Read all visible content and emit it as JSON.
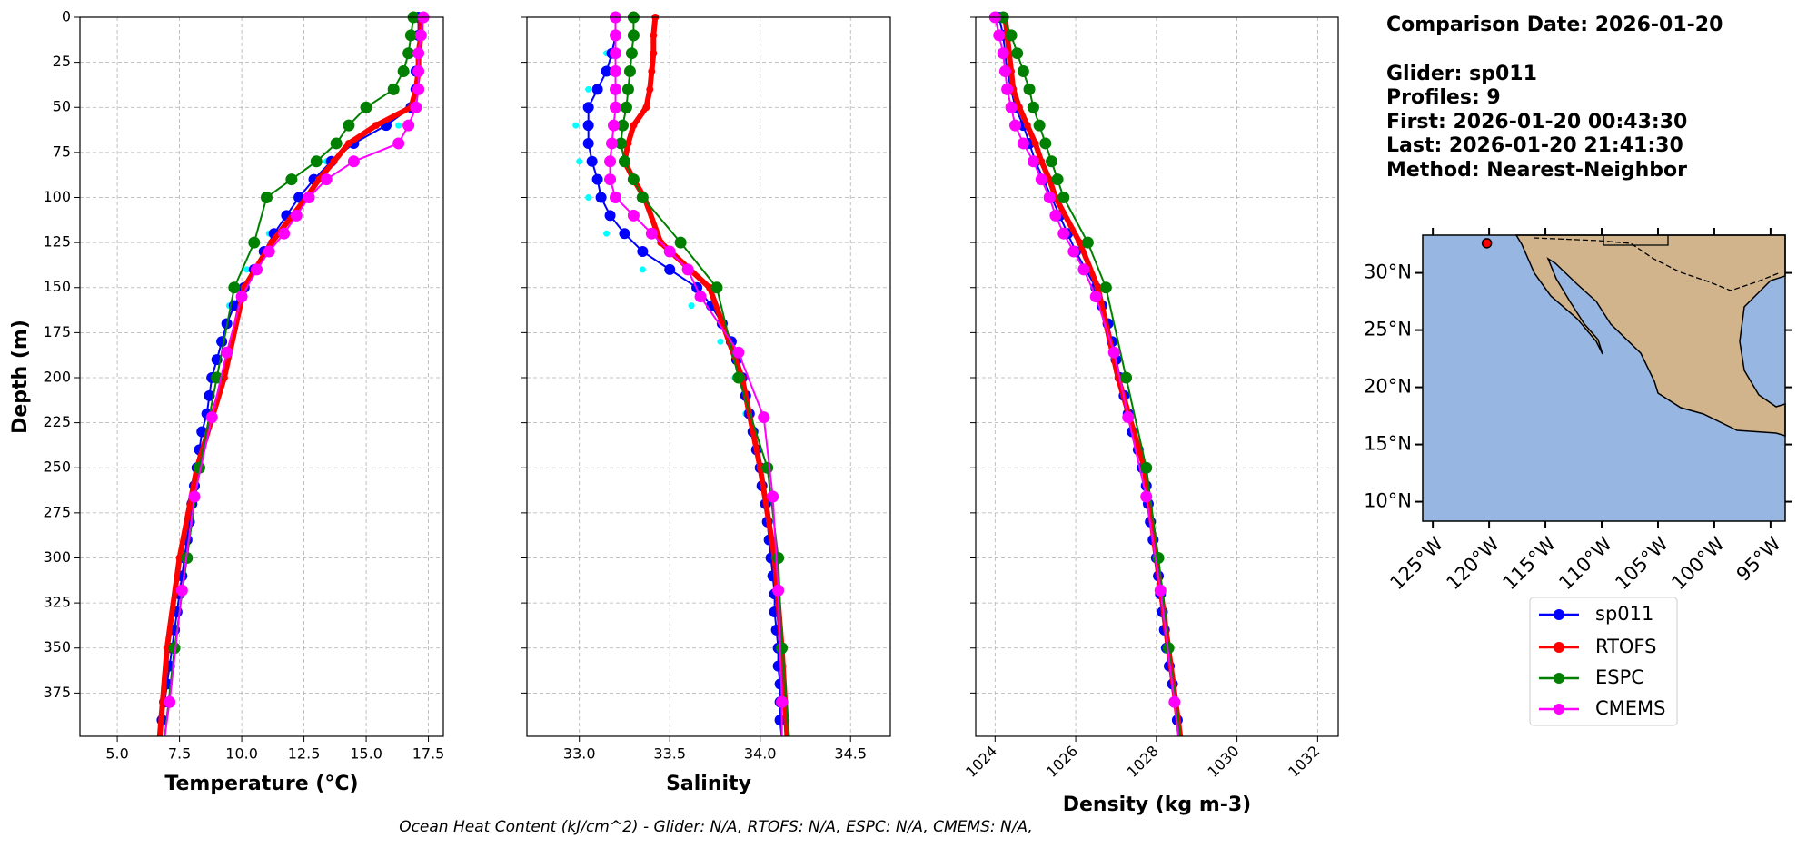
{
  "chart_data": [
    {
      "type": "line",
      "xlabel": "Temperature (°C)",
      "ylabel": "Depth (m)",
      "grid": true,
      "y_inverted": true,
      "xlim": [
        3.5,
        18.1
      ],
      "ylim": [
        0,
        399
      ],
      "xticks": [
        {
          "value": 5,
          "label": "5.0"
        },
        7.5,
        {
          "value": 10,
          "label": "10.0"
        },
        12.5,
        {
          "value": 15,
          "label": "15.0"
        },
        17.5
      ],
      "yticks": [
        0,
        25,
        50,
        75,
        100,
        125,
        150,
        175,
        200,
        225,
        250,
        275,
        300,
        325,
        350,
        375
      ],
      "series": [
        {
          "type": "scatter",
          "color": "#00ffff",
          "depth": [
            0,
            20,
            40,
            60,
            80,
            100,
            120,
            140,
            160,
            180,
            200,
            220,
            240,
            260,
            280,
            300,
            320,
            340,
            360,
            380,
            400
          ],
          "values": [
            17.0,
            16.9,
            16.9,
            16.3,
            13.4,
            12.2,
            11.1,
            10.2,
            9.5,
            9.1,
            8.7,
            8.5,
            8.2,
            8.0,
            7.8,
            7.6,
            7.4,
            7.2,
            7.0,
            6.9,
            6.7
          ]
        },
        {
          "name": "sp011",
          "color": "#0000ff",
          "depth": [
            0,
            10,
            20,
            30,
            40,
            50,
            60,
            70,
            80,
            90,
            100,
            110,
            120,
            130,
            140,
            150,
            160,
            170,
            180,
            190,
            200,
            210,
            220,
            230,
            240,
            250,
            260,
            270,
            280,
            290,
            300,
            310,
            320,
            330,
            340,
            350,
            360,
            370,
            380,
            390,
            400
          ],
          "values": [
            17.1,
            17.1,
            17.1,
            17.0,
            17.0,
            16.8,
            15.8,
            14.5,
            13.6,
            12.9,
            12.3,
            11.8,
            11.3,
            10.9,
            10.5,
            10.1,
            9.7,
            9.4,
            9.2,
            9.0,
            8.8,
            8.7,
            8.6,
            8.4,
            8.3,
            8.2,
            8.1,
            8.0,
            7.9,
            7.8,
            7.7,
            7.6,
            7.5,
            7.4,
            7.3,
            7.2,
            7.1,
            7.0,
            6.9,
            6.8,
            6.7
          ]
        },
        {
          "name": "RTOFS",
          "color": "#ff0000",
          "depth": [
            0,
            10,
            20,
            30,
            40,
            50,
            60,
            70,
            80,
            90,
            100,
            125,
            150,
            200,
            250,
            300,
            350,
            400
          ],
          "values": [
            17.2,
            17.2,
            17.1,
            17.1,
            17.0,
            16.8,
            15.4,
            14.3,
            13.7,
            13.1,
            12.6,
            11.2,
            10.1,
            9.3,
            8.2,
            7.5,
            7.0,
            6.7
          ]
        },
        {
          "name": "ESPC",
          "color": "#008000",
          "depth": [
            0,
            10,
            20,
            30,
            40,
            50,
            60,
            70,
            80,
            90,
            100,
            125,
            150,
            200,
            250,
            300,
            350,
            400
          ],
          "values": [
            16.9,
            16.8,
            16.7,
            16.5,
            16.1,
            15.0,
            14.3,
            13.8,
            13.0,
            12.0,
            11.0,
            10.5,
            9.7,
            9.0,
            8.3,
            7.8,
            7.3,
            6.9
          ]
        },
        {
          "name": "CMEMS",
          "color": "#ff00ff",
          "depth": [
            0,
            10,
            20,
            30,
            40,
            50,
            60,
            70,
            80,
            90,
            100,
            110,
            120,
            130,
            140,
            155,
            186,
            222,
            266,
            318,
            380,
            400
          ],
          "values": [
            17.3,
            17.2,
            17.1,
            17.1,
            17.1,
            17.0,
            16.7,
            16.3,
            14.5,
            13.4,
            12.7,
            12.2,
            11.7,
            11.1,
            10.6,
            10.0,
            9.4,
            8.8,
            8.1,
            7.6,
            7.1,
            6.9
          ]
        }
      ]
    },
    {
      "type": "line",
      "xlabel": "Salinity",
      "grid": true,
      "y_inverted": true,
      "ytick_labels": false,
      "xlim": [
        32.71,
        34.72
      ],
      "ylim": [
        0,
        399
      ],
      "xticks": [
        {
          "value": 33,
          "label": "33.0"
        },
        33.5,
        {
          "value": 34,
          "label": "34.0"
        },
        34.5
      ],
      "yticks": [
        0,
        25,
        50,
        75,
        100,
        125,
        150,
        175,
        200,
        225,
        250,
        275,
        300,
        325,
        350,
        375
      ],
      "series": [
        {
          "type": "scatter",
          "color": "#00ffff",
          "depth": [
            0,
            20,
            40,
            60,
            80,
            100,
            120,
            140,
            160,
            180,
            200,
            220,
            240,
            260,
            280,
            300,
            320,
            340,
            360,
            380,
            400
          ],
          "values": [
            33.2,
            33.15,
            33.05,
            32.98,
            33.0,
            33.05,
            33.15,
            33.35,
            33.62,
            33.78,
            33.86,
            33.92,
            33.97,
            34.0,
            34.04,
            34.07,
            34.09,
            34.11,
            34.13,
            34.14,
            34.14
          ]
        },
        {
          "name": "sp011",
          "color": "#0000ff",
          "depth": [
            0,
            10,
            20,
            30,
            40,
            50,
            60,
            70,
            80,
            90,
            100,
            110,
            120,
            130,
            140,
            150,
            160,
            170,
            180,
            190,
            200,
            210,
            220,
            230,
            240,
            250,
            260,
            270,
            280,
            290,
            300,
            310,
            320,
            330,
            340,
            350,
            360,
            370,
            380,
            390,
            400
          ],
          "values": [
            33.2,
            33.2,
            33.18,
            33.15,
            33.1,
            33.05,
            33.05,
            33.05,
            33.07,
            33.1,
            33.12,
            33.17,
            33.25,
            33.35,
            33.5,
            33.65,
            33.73,
            33.79,
            33.84,
            33.87,
            33.9,
            33.92,
            33.94,
            33.96,
            33.98,
            34.0,
            34.01,
            34.03,
            34.04,
            34.05,
            34.06,
            34.07,
            34.08,
            34.08,
            34.09,
            34.1,
            34.1,
            34.11,
            34.11,
            34.11,
            34.12
          ]
        },
        {
          "name": "RTOFS",
          "color": "#ff0000",
          "depth": [
            0,
            10,
            20,
            30,
            40,
            50,
            60,
            70,
            80,
            90,
            100,
            125,
            150,
            200,
            250,
            300,
            350,
            400
          ],
          "values": [
            33.42,
            33.41,
            33.41,
            33.4,
            33.39,
            33.37,
            33.3,
            33.27,
            33.25,
            33.3,
            33.36,
            33.45,
            33.72,
            33.9,
            34.0,
            34.08,
            34.12,
            34.15
          ]
        },
        {
          "name": "ESPC",
          "color": "#008000",
          "depth": [
            0,
            10,
            20,
            30,
            40,
            50,
            60,
            70,
            80,
            90,
            100,
            125,
            150,
            200,
            250,
            300,
            350,
            400
          ],
          "values": [
            33.3,
            33.3,
            33.29,
            33.28,
            33.27,
            33.26,
            33.24,
            33.23,
            33.25,
            33.3,
            33.35,
            33.56,
            33.76,
            33.88,
            34.04,
            34.1,
            34.12,
            34.16
          ]
        },
        {
          "name": "CMEMS",
          "color": "#ff00ff",
          "depth": [
            0,
            10,
            20,
            30,
            40,
            50,
            60,
            70,
            80,
            90,
            100,
            110,
            120,
            130,
            140,
            155,
            186,
            222,
            266,
            318,
            380,
            400
          ],
          "values": [
            33.2,
            33.2,
            33.2,
            33.2,
            33.2,
            33.2,
            33.19,
            33.18,
            33.17,
            33.17,
            33.2,
            33.3,
            33.4,
            33.5,
            33.6,
            33.67,
            33.88,
            34.02,
            34.07,
            34.1,
            34.12,
            34.12
          ]
        }
      ]
    },
    {
      "type": "line",
      "xlabel": "Density (kg m-3)",
      "grid": true,
      "y_inverted": true,
      "ytick_labels": false,
      "xtick_rotation": 45,
      "xlim": [
        1023.52,
        1032.51
      ],
      "ylim": [
        0,
        399
      ],
      "xticks": [
        1024,
        1026,
        1028,
        1030,
        1032
      ],
      "yticks": [
        0,
        25,
        50,
        75,
        100,
        125,
        150,
        175,
        200,
        225,
        250,
        275,
        300,
        325,
        350,
        375
      ],
      "series": [
        {
          "type": "scatter",
          "color": "#00ffff",
          "depth": [
            0,
            20,
            40,
            60,
            80,
            100,
            120,
            140,
            160,
            180,
            200,
            220,
            240,
            260,
            280,
            300,
            320,
            340,
            360,
            380,
            400
          ],
          "values": [
            1024.1,
            1024.25,
            1024.4,
            1024.75,
            1025.05,
            1025.45,
            1025.85,
            1026.2,
            1026.6,
            1026.85,
            1027.05,
            1027.3,
            1027.55,
            1027.75,
            1027.85,
            1028.0,
            1028.1,
            1028.2,
            1028.32,
            1028.45,
            1028.6
          ]
        },
        {
          "name": "sp011",
          "color": "#0000ff",
          "depth": [
            0,
            10,
            20,
            30,
            40,
            50,
            60,
            70,
            80,
            90,
            100,
            110,
            120,
            130,
            140,
            150,
            160,
            170,
            180,
            190,
            200,
            210,
            220,
            230,
            240,
            250,
            260,
            270,
            280,
            290,
            300,
            310,
            320,
            330,
            340,
            350,
            360,
            370,
            380,
            390,
            400
          ],
          "values": [
            1024.1,
            1024.2,
            1024.25,
            1024.3,
            1024.4,
            1024.5,
            1024.7,
            1024.85,
            1025.0,
            1025.2,
            1025.4,
            1025.6,
            1025.8,
            1026.0,
            1026.25,
            1026.5,
            1026.65,
            1026.8,
            1026.9,
            1027.0,
            1027.1,
            1027.2,
            1027.3,
            1027.4,
            1027.55,
            1027.65,
            1027.75,
            1027.8,
            1027.85,
            1027.92,
            1028.0,
            1028.05,
            1028.1,
            1028.15,
            1028.2,
            1028.25,
            1028.32,
            1028.4,
            1028.45,
            1028.52,
            1028.6
          ]
        },
        {
          "name": "RTOFS",
          "color": "#ff0000",
          "depth": [
            0,
            10,
            20,
            30,
            40,
            50,
            60,
            70,
            80,
            90,
            100,
            125,
            150,
            200,
            250,
            300,
            350,
            400
          ],
          "values": [
            1024.25,
            1024.3,
            1024.35,
            1024.4,
            1024.45,
            1024.6,
            1024.8,
            1025.0,
            1025.15,
            1025.35,
            1025.5,
            1026.1,
            1026.55,
            1027.05,
            1027.7,
            1028.0,
            1028.3,
            1028.6
          ]
        },
        {
          "name": "ESPC",
          "color": "#008000",
          "depth": [
            0,
            10,
            20,
            30,
            40,
            50,
            60,
            70,
            80,
            90,
            100,
            125,
            150,
            200,
            250,
            300,
            350,
            400
          ],
          "values": [
            1024.2,
            1024.4,
            1024.55,
            1024.7,
            1024.85,
            1024.95,
            1025.1,
            1025.25,
            1025.4,
            1025.55,
            1025.7,
            1026.3,
            1026.75,
            1027.25,
            1027.75,
            1028.05,
            1028.3,
            1028.6
          ]
        },
        {
          "name": "CMEMS",
          "color": "#ff00ff",
          "depth": [
            0,
            10,
            20,
            30,
            40,
            50,
            60,
            70,
            80,
            90,
            100,
            110,
            120,
            130,
            140,
            155,
            186,
            222,
            266,
            318,
            380,
            400
          ],
          "values": [
            1024.0,
            1024.1,
            1024.2,
            1024.25,
            1024.3,
            1024.4,
            1024.5,
            1024.7,
            1024.95,
            1025.15,
            1025.35,
            1025.5,
            1025.7,
            1025.95,
            1026.2,
            1026.5,
            1026.95,
            1027.3,
            1027.75,
            1028.1,
            1028.45,
            1028.55
          ]
        }
      ]
    }
  ],
  "info": [
    "Comparison Date: 2026-01-20",
    "Glider: sp011",
    "Profiles: 9",
    "First: 2026-01-20 00:43:30",
    "Last: 2026-01-20 21:41:30",
    "Method: Nearest-Neighbor"
  ],
  "map": {
    "xlim": [
      -125.9,
      -93.7
    ],
    "ylim": [
      8.3,
      33.3
    ],
    "xticks": [
      {
        "value": -125,
        "label": "125°W"
      },
      {
        "value": -120,
        "label": "120°W"
      },
      {
        "value": -115,
        "label": "115°W"
      },
      {
        "value": -110,
        "label": "110°W"
      },
      {
        "value": -105,
        "label": "105°W"
      },
      {
        "value": -100,
        "label": "100°W"
      },
      {
        "value": -95,
        "label": "95°W"
      }
    ],
    "yticks": [
      {
        "value": 10,
        "label": "10°N"
      },
      {
        "value": 15,
        "label": "15°N"
      },
      {
        "value": 20,
        "label": "20°N"
      },
      {
        "value": 25,
        "label": "25°N"
      },
      {
        "value": 30,
        "label": "30°N"
      }
    ],
    "glider_position": {
      "lon": -120.2,
      "lat": 32.6,
      "color": "#ff0000"
    }
  },
  "footer": "Ocean Heat Content (kJ/cm^2) - Glider: N/A,  RTOFS: N/A,  ESPC: N/A,  CMEMS: N/A,"
}
